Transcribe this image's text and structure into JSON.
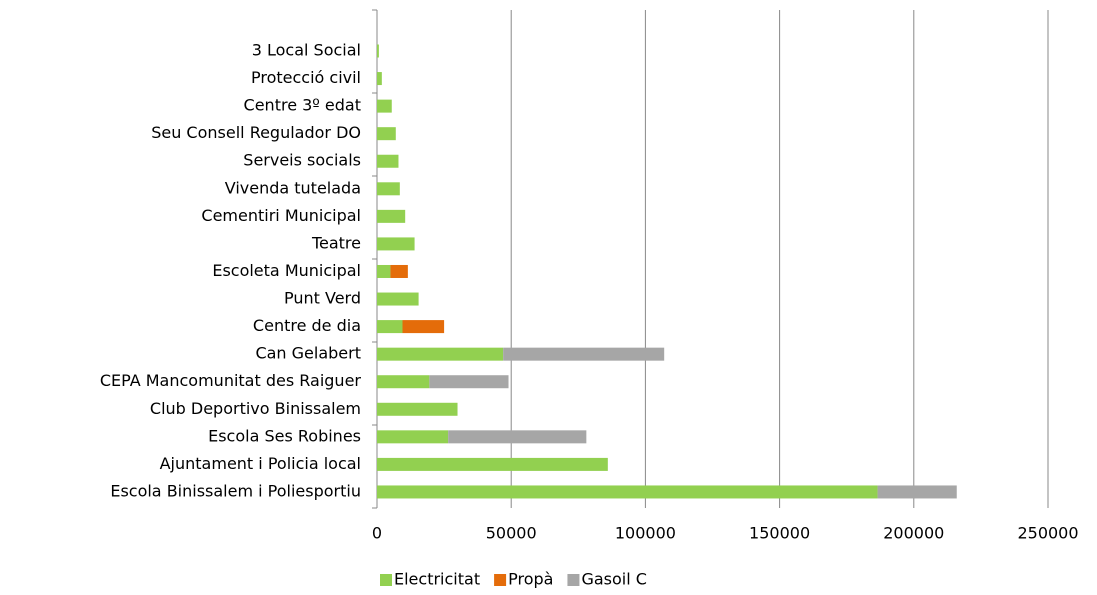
{
  "chart_data": {
    "type": "stacked_barh",
    "categories": [
      "3 Local Social",
      "Protecció civil",
      "Centre 3º edat",
      "Seu Consell Regulador DO",
      "Serveis socials",
      "Vivenda tutelada",
      "Cementiri Municipal",
      "Teatre",
      "Escoleta Municipal",
      "Punt Verd",
      "Centre de dia",
      "Can Gelabert",
      "CEPA  Mancomunitat des Raiguer",
      "Club Deportivo Binissalem",
      "Escola Ses Robines",
      "Ajuntament i Policia local",
      "Escola Binissalem i Poliesportiu"
    ],
    "series": [
      {
        "name": "Electricitat",
        "color": "#92d050",
        "values": [
          700,
          1800,
          5500,
          7000,
          8000,
          8500,
          10500,
          14000,
          5000,
          15500,
          9500,
          47000,
          19500,
          30000,
          26500,
          86000,
          186500
        ]
      },
      {
        "name": "Propà",
        "color": "#e46c0a",
        "values": [
          0,
          0,
          0,
          0,
          0,
          0,
          0,
          0,
          6500,
          0,
          15500,
          0,
          0,
          0,
          0,
          0,
          0
        ]
      },
      {
        "name": "Gasoil C",
        "color": "#a6a6a6",
        "values": [
          0,
          0,
          0,
          0,
          0,
          0,
          0,
          0,
          0,
          0,
          0,
          60000,
          29500,
          0,
          51500,
          0,
          29500
        ]
      }
    ],
    "xlim": [
      0,
      250000
    ],
    "xticks": [
      0,
      50000,
      100000,
      150000,
      200000,
      250000
    ],
    "grid": true,
    "legend": "bottom"
  }
}
